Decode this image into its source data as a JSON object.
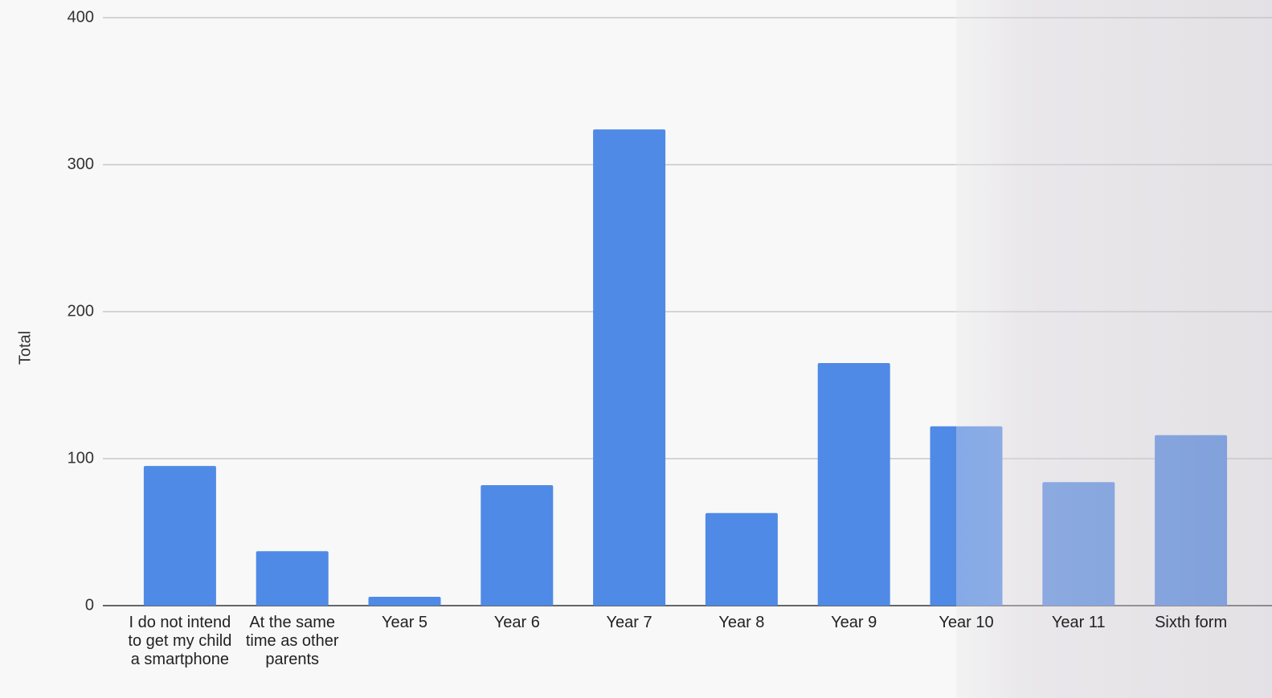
{
  "chart_data": {
    "type": "bar",
    "y_label": "Total",
    "categories": [
      "I do not intend to get my child a smartphone",
      "At the same time as other parents",
      "Year 5",
      "Year 6",
      "Year 7",
      "Year 8",
      "Year 9",
      "Year 10",
      "Year 11",
      "Sixth form"
    ],
    "values": [
      95,
      37,
      6,
      82,
      324,
      63,
      165,
      122,
      84,
      116
    ],
    "color": "#4f8ae6",
    "ylim": [
      0,
      400
    ],
    "yticks": [
      0,
      100,
      200,
      300,
      400
    ],
    "grid": true
  }
}
